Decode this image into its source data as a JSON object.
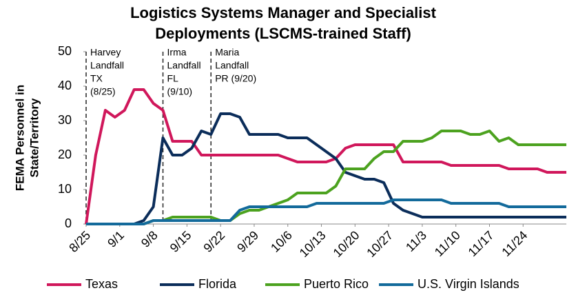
{
  "chart_data": {
    "type": "line",
    "title": [
      "Logistics Systems Manager and Specialist",
      "Deployments (LSCMS-trained Staff)"
    ],
    "y_label": [
      "FEMA Personnel in",
      "State/Territory"
    ],
    "x": [
      "8/25",
      "8/27",
      "8/29",
      "8/31",
      "9/2",
      "9/4",
      "9/6",
      "9/8",
      "9/10",
      "9/12",
      "9/14",
      "9/16",
      "9/18",
      "9/20",
      "9/22",
      "9/24",
      "9/26",
      "9/28",
      "9/30",
      "10/2",
      "10/4",
      "10/6",
      "10/8",
      "10/10",
      "10/12",
      "10/14",
      "10/16",
      "10/18",
      "10/20",
      "10/22",
      "10/24",
      "10/26",
      "10/28",
      "10/30",
      "11/1",
      "11/3",
      "11/5",
      "11/7",
      "11/9",
      "11/11",
      "11/13",
      "11/15",
      "11/17",
      "11/19",
      "11/21",
      "11/23",
      "11/25",
      "11/27",
      "11/29",
      "12/1",
      "12/3"
    ],
    "series": [
      {
        "name": "Texas",
        "color": "#d0175b",
        "values": [
          0,
          20,
          33,
          31,
          33,
          39,
          39,
          35,
          33,
          24,
          24,
          24,
          20,
          20,
          20,
          20,
          20,
          20,
          20,
          20,
          20,
          19,
          18,
          18,
          18,
          18,
          19,
          22,
          23,
          23,
          23,
          23,
          23,
          18,
          18,
          18,
          18,
          18,
          17,
          17,
          17,
          17,
          17,
          17,
          16,
          16,
          16,
          16,
          15,
          15,
          15
        ]
      },
      {
        "name": "Florida",
        "color": "#0b2d5a",
        "values": [
          0,
          0,
          0,
          0,
          0,
          0,
          1,
          5,
          25,
          20,
          20,
          22,
          27,
          26,
          32,
          32,
          31,
          26,
          26,
          26,
          26,
          25,
          25,
          25,
          23,
          21,
          19,
          15,
          14,
          13,
          13,
          12,
          6,
          4,
          3,
          2,
          2,
          2,
          2,
          2,
          2,
          2,
          2,
          2,
          2,
          2,
          2,
          2,
          2,
          2,
          2
        ]
      },
      {
        "name": "Puerto Rico",
        "color": "#4ca21f",
        "values": [
          0,
          0,
          0,
          0,
          0,
          0,
          0,
          1,
          1,
          2,
          2,
          2,
          2,
          2,
          1,
          1,
          3,
          4,
          4,
          5,
          6,
          7,
          9,
          9,
          9,
          9,
          11,
          16,
          16,
          16,
          19,
          21,
          21,
          24,
          24,
          24,
          25,
          27,
          27,
          27,
          26,
          26,
          27,
          24,
          25,
          23,
          23,
          23,
          23,
          23,
          23
        ]
      },
      {
        "name": "U.S. Virgin Islands",
        "color": "#136a9b",
        "values": [
          0,
          0,
          0,
          0,
          0,
          0,
          0,
          1,
          1,
          1,
          1,
          1,
          1,
          1,
          1,
          1,
          4,
          5,
          5,
          5,
          5,
          5,
          5,
          5,
          6,
          6,
          6,
          6,
          6,
          6,
          6,
          6,
          7,
          7,
          7,
          7,
          7,
          7,
          6,
          6,
          6,
          6,
          6,
          6,
          5,
          5,
          5,
          5,
          5,
          5,
          5
        ]
      }
    ],
    "xlim": [
      "8/25",
      "12/3"
    ],
    "xticks": [
      "8/25",
      "9/1",
      "9/8",
      "9/15",
      "9/22",
      "9/29",
      "10/6",
      "10/13",
      "10/20",
      "10/27",
      "11/3",
      "11/10",
      "11/17",
      "11/24"
    ],
    "ylim": [
      0,
      50
    ],
    "yticks": [
      0,
      10,
      20,
      30,
      40,
      50
    ],
    "grid": false,
    "legend": "bottom",
    "annotations": [
      {
        "x": "8/25",
        "text": [
          "Harvey",
          "Landfall",
          "TX",
          "(8/25)"
        ]
      },
      {
        "x": "9/10",
        "text": [
          "Irma",
          "Landfall",
          "FL",
          "(9/10)"
        ]
      },
      {
        "x": "9/20",
        "text": [
          "Maria",
          "Landfall",
          "PR (9/20)"
        ]
      }
    ]
  }
}
